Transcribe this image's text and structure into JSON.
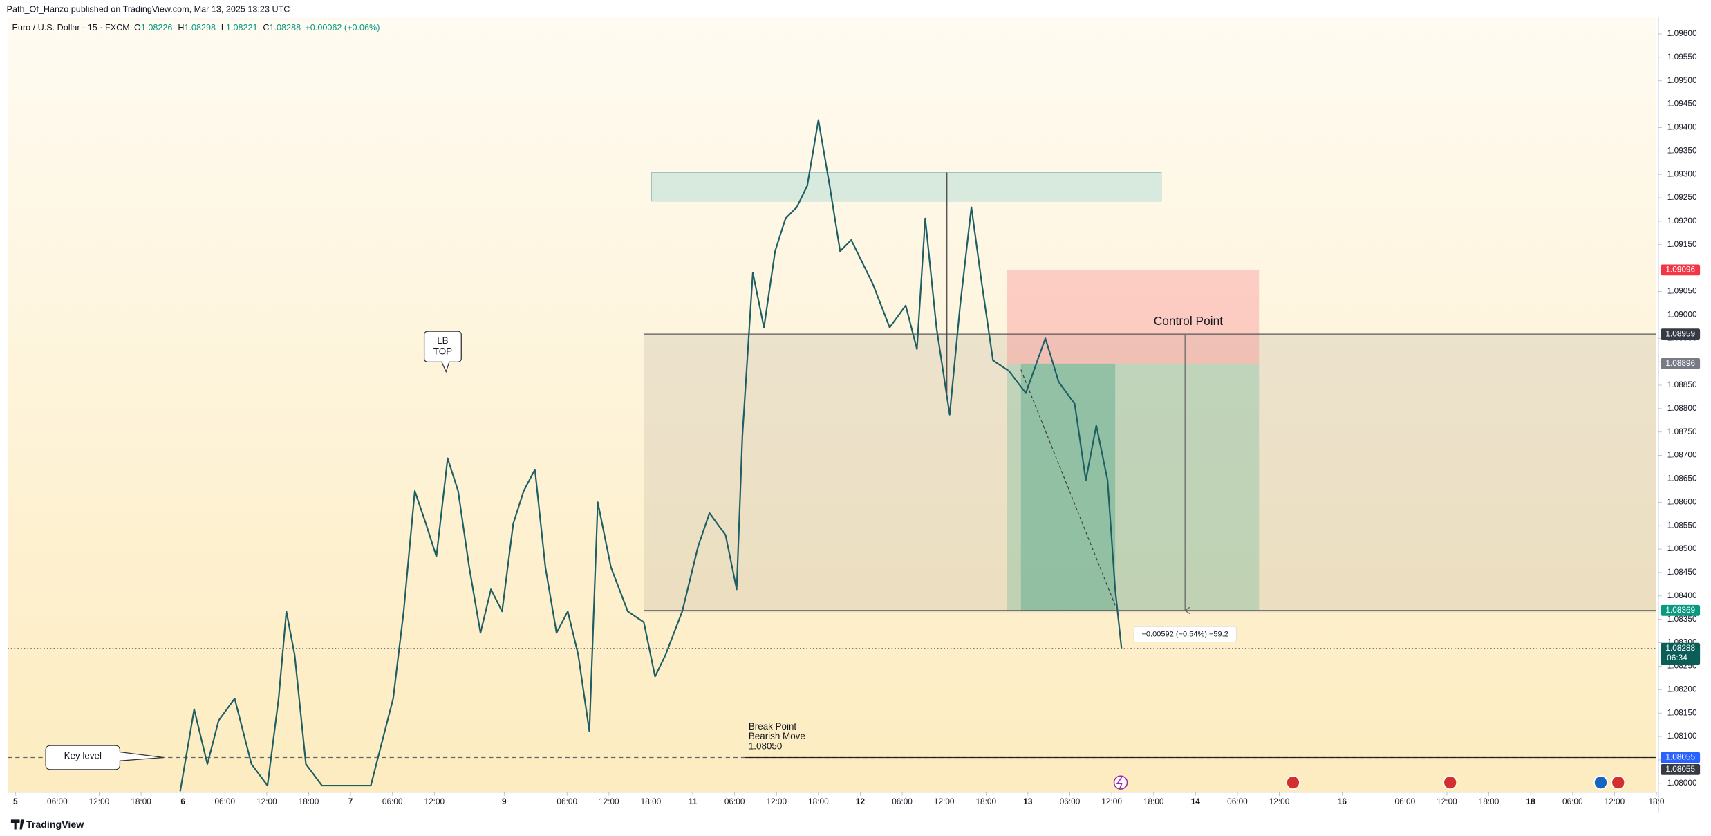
{
  "header": {
    "publisher": "Path_Of_Hanzo published on TradingView.com, Mar 13, 2025 13:23 UTC",
    "symbol": "Euro / U.S. Dollar · 15 · FXCM",
    "ohlc": [
      {
        "key": "O",
        "value": 1.08226
      },
      {
        "key": "H",
        "value": 1.08298
      },
      {
        "key": "L",
        "value": 1.08221
      },
      {
        "key": "C",
        "value": 1.08288
      }
    ],
    "change": "+0.00062 (+0.06%)"
  },
  "chart_data": {
    "type": "line",
    "color": "#1e5f66",
    "x": [
      23.6,
      25.6,
      27.5,
      29.1,
      31.4,
      33.8,
      36.1,
      37.7,
      38.8,
      40,
      41.6,
      43.9,
      50.9,
      52.5,
      54.1,
      55.6,
      57.2,
      58.8,
      60.3,
      61.9,
      63.4,
      65,
      66.6,
      68.1,
      69.7,
      71.3,
      72.8,
      74.4,
      75.9,
      77.5,
      79.1,
      80.6,
      82.2,
      83.4,
      85.3,
      87.7,
      90,
      91.6,
      93.1,
      95.5,
      97.8,
      99.4,
      101.7,
      103.3,
      104.1,
      105.6,
      107.2,
      108.8,
      110.3,
      111.9,
      113.4,
      115,
      116.6,
      118.1,
      119.7,
      122.8,
      125.2,
      127.5,
      129.1,
      130.3,
      131.9,
      133.8,
      135.3,
      136.9,
      138.4,
      140,
      142.3,
      144.7,
      147.5,
      149.4,
      151.7,
      153.3,
      154.8,
      156.4,
      157.5,
      158.4
    ],
    "values": [
      1.07983,
      1.08158,
      1.08041,
      1.08134,
      1.08181,
      1.08041,
      1.07995,
      1.08181,
      1.08367,
      1.08274,
      1.08041,
      1.07995,
      1.07995,
      1.08088,
      1.08181,
      1.08367,
      1.08624,
      1.08554,
      1.08484,
      1.08694,
      1.08624,
      1.08461,
      1.08321,
      1.08414,
      1.08367,
      1.08554,
      1.08624,
      1.0867,
      1.08461,
      1.08321,
      1.08367,
      1.08274,
      1.08111,
      1.086,
      1.08461,
      1.08367,
      1.08344,
      1.08228,
      1.08274,
      1.08367,
      1.08507,
      1.08577,
      1.0853,
      1.08414,
      1.0874,
      1.0909,
      1.08973,
      1.09136,
      1.09206,
      1.0923,
      1.09276,
      1.09416,
      1.09276,
      1.09136,
      1.0916,
      1.09066,
      1.08973,
      1.0902,
      1.08927,
      1.09206,
      1.08973,
      1.08787,
      1.0902,
      1.0923,
      1.09066,
      1.08903,
      1.0888,
      1.08833,
      1.0895,
      1.08857,
      1.0881,
      1.08647,
      1.08764,
      1.08647,
      1.08414,
      1.08288
    ],
    "xlim": [
      -1.1,
      235
    ],
    "ylim": [
      1.07983,
      1.09635
    ],
    "xticks": [
      {
        "value": 0,
        "label": "5"
      },
      {
        "value": 6,
        "label": "06:00"
      },
      {
        "value": 12,
        "label": "12:00"
      },
      {
        "value": 18,
        "label": "18:00"
      },
      {
        "value": 24,
        "label": "6"
      },
      {
        "value": 30,
        "label": "06:00"
      },
      {
        "value": 36,
        "label": "12:00"
      },
      {
        "value": 42,
        "label": "18:00"
      },
      {
        "value": 48,
        "label": "7"
      },
      {
        "value": 54,
        "label": "06:00"
      },
      {
        "value": 60,
        "label": "12:00"
      },
      {
        "value": 70,
        "label": "9"
      },
      {
        "value": 79,
        "label": "06:00"
      },
      {
        "value": 85,
        "label": "12:00"
      },
      {
        "value": 91,
        "label": "18:00"
      },
      {
        "value": 97,
        "label": "11"
      },
      {
        "value": 103,
        "label": "06:00"
      },
      {
        "value": 109,
        "label": "12:00"
      },
      {
        "value": 115,
        "label": "18:00"
      },
      {
        "value": 121,
        "label": "12"
      },
      {
        "value": 127,
        "label": "06:00"
      },
      {
        "value": 133,
        "label": "12:00"
      },
      {
        "value": 139,
        "label": "18:00"
      },
      {
        "value": 145,
        "label": "13"
      },
      {
        "value": 151,
        "label": "06:00"
      },
      {
        "value": 157,
        "label": "12:00"
      },
      {
        "value": 163,
        "label": "18:00"
      },
      {
        "value": 169,
        "label": "14"
      },
      {
        "value": 175,
        "label": "06:00"
      },
      {
        "value": 181,
        "label": "12:00"
      },
      {
        "value": 190,
        "label": "16"
      },
      {
        "value": 199,
        "label": "06:00"
      },
      {
        "value": 205,
        "label": "12:00"
      },
      {
        "value": 211,
        "label": "18:00"
      },
      {
        "value": 217,
        "label": "18"
      },
      {
        "value": 223,
        "label": "06:00"
      },
      {
        "value": 229,
        "label": "12:00"
      },
      {
        "value": 235,
        "label": "18:0"
      }
    ],
    "yticks": [
      {
        "value": 1.096,
        "label": "1.09600"
      },
      {
        "value": 1.0955,
        "label": "1.09550"
      },
      {
        "value": 1.095,
        "label": "1.09500"
      },
      {
        "value": 1.0945,
        "label": "1.09450"
      },
      {
        "value": 1.094,
        "label": "1.09400"
      },
      {
        "value": 1.0935,
        "label": "1.09350"
      },
      {
        "value": 1.093,
        "label": "1.09300"
      },
      {
        "value": 1.0925,
        "label": "1.09250"
      },
      {
        "value": 1.092,
        "label": "1.09200"
      },
      {
        "value": 1.0915,
        "label": "1.09150"
      },
      {
        "value": 1.091,
        "label": "1.09100"
      },
      {
        "value": 1.0905,
        "label": "1.09050"
      },
      {
        "value": 1.09,
        "label": "1.09000"
      },
      {
        "value": 1.0895,
        "label": "1.08950"
      },
      {
        "value": 1.089,
        "label": "1.08900"
      },
      {
        "value": 1.0885,
        "label": "1.08850"
      },
      {
        "value": 1.088,
        "label": "1.08800"
      },
      {
        "value": 1.0875,
        "label": "1.08750"
      },
      {
        "value": 1.087,
        "label": "1.08700"
      },
      {
        "value": 1.0865,
        "label": "1.08650"
      },
      {
        "value": 1.086,
        "label": "1.08600"
      },
      {
        "value": 1.0855,
        "label": "1.08550"
      },
      {
        "value": 1.085,
        "label": "1.08500"
      },
      {
        "value": 1.0845,
        "label": "1.08450"
      },
      {
        "value": 1.084,
        "label": "1.08400"
      },
      {
        "value": 1.0835,
        "label": "1.08350"
      },
      {
        "value": 1.083,
        "label": "1.08300"
      },
      {
        "value": 1.0825,
        "label": "1.08250"
      },
      {
        "value": 1.082,
        "label": "1.08200"
      },
      {
        "value": 1.0815,
        "label": "1.08150"
      },
      {
        "value": 1.081,
        "label": "1.08100"
      },
      {
        "value": 1.0805,
        "label": "1.08050"
      },
      {
        "value": 1.08,
        "label": "1.08000"
      }
    ]
  },
  "price_markers": [
    {
      "value": 1.09096,
      "color": "#f23645"
    },
    {
      "value": 1.08959,
      "color": "#363a45"
    },
    {
      "value": 1.08896,
      "color": "#787b86"
    },
    {
      "value": 1.08369,
      "color": "#089981"
    },
    {
      "value": 1.08288,
      "color": "#0b5e57",
      "countdown": "06:34"
    },
    {
      "value": 1.08055,
      "color": "#2962ff"
    },
    {
      "value": 1.08055,
      "color": "#363a45"
    }
  ],
  "zones": [
    {
      "h": [
        90,
        235
      ],
      "p": [
        1.08365,
        1.08957
      ],
      "color": "rgba(190,180,160,0.28)"
    },
    {
      "h": [
        91.1,
        164.1
      ],
      "p": [
        1.09243,
        1.09304
      ],
      "color": "rgba(170,215,210,0.45)"
    },
    {
      "h": [
        142,
        178.1
      ],
      "p": [
        1.08896,
        1.09096
      ],
      "color": "rgba(250,130,140,0.35)"
    },
    {
      "h": [
        142,
        178.1
      ],
      "p": [
        1.08369,
        1.08896
      ],
      "color": "rgba(60,170,140,0.25)"
    },
    {
      "h": [
        144,
        157.5
      ],
      "p": [
        1.08369,
        1.08896
      ],
      "color": "rgba(40,150,120,0.3)"
    }
  ],
  "hlines": [
    {
      "p": 1.08959,
      "h": [
        90,
        235
      ],
      "style": "solid",
      "color": "#555"
    },
    {
      "p": 1.08369,
      "h": [
        90,
        235
      ],
      "style": "solid",
      "color": "#555"
    },
    {
      "p": 1.08055,
      "h": [
        -1.1,
        235
      ],
      "style": "dashed",
      "color": "#666"
    },
    {
      "p": 1.08055,
      "h": [
        104.5,
        235
      ],
      "style": "solid",
      "color": "#222"
    },
    {
      "p": 1.08288,
      "h": [
        -1.1,
        235
      ],
      "style": "dotted",
      "color": "#777"
    }
  ],
  "segments": [
    {
      "h": [
        133.4,
        133.4
      ],
      "p": [
        1.09304,
        1.08833
      ]
    },
    {
      "h": [
        144,
        157.5
      ],
      "p": [
        1.08883,
        1.0838
      ],
      "dashed": true
    },
    {
      "h": [
        167.5,
        167.5
      ],
      "p": [
        1.08957,
        1.08369
      ],
      "arrow": true
    }
  ],
  "annotations": {
    "control_point": {
      "text": "Control Point",
      "h": 163,
      "p": 1.08985
    },
    "measure": {
      "text": "−0.00592 (−0.54%) −59.2",
      "h": 167.5,
      "p": 1.08318
    },
    "break": {
      "lines": [
        "Break Point",
        "Bearish Move",
        "1.08050"
      ],
      "h": 105,
      "p": 1.0812
    },
    "lb_top": {
      "lines": [
        "LB",
        "TOP"
      ],
      "h": 61.2,
      "p": 1.0893
    },
    "key_level": {
      "text": "Key level",
      "h": 4.5,
      "p": 1.08055
    }
  },
  "footer": {
    "brand": "TradingView"
  }
}
